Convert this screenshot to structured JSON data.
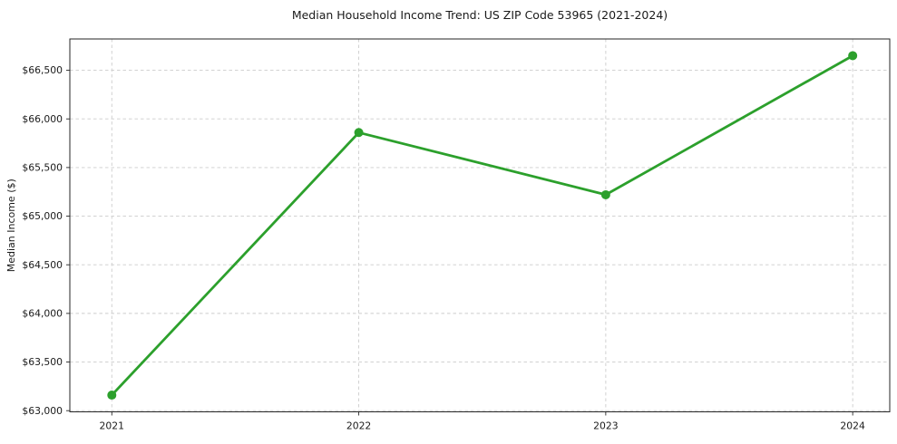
{
  "figure": {
    "background": "#ffffff"
  },
  "chart_data": {
    "type": "line",
    "title": "Median Household Income Trend: US ZIP Code 53965 (2021-2024)",
    "xlabel": "",
    "ylabel": "Median Income ($)",
    "x": [
      2021,
      2022,
      2023,
      2024
    ],
    "x_tick_labels": [
      "2021",
      "2022",
      "2023",
      "2024"
    ],
    "values": [
      63160,
      65860,
      65220,
      66650
    ],
    "y_ticks": [
      {
        "value": 63000,
        "label": "$63,000"
      },
      {
        "value": 63500,
        "label": "$63,500"
      },
      {
        "value": 64000,
        "label": "$64,000"
      },
      {
        "value": 64500,
        "label": "$64,500"
      },
      {
        "value": 65000,
        "label": "$65,000"
      },
      {
        "value": 65500,
        "label": "$65,500"
      },
      {
        "value": 66000,
        "label": "$66,000"
      },
      {
        "value": 66500,
        "label": "$66,500"
      }
    ],
    "xlim": [
      2020.83,
      2024.15
    ],
    "ylim": [
      62988,
      66822
    ],
    "grid": true,
    "grid_style": "dashed",
    "legend": "none",
    "style": {
      "line_color": "#2ca02c",
      "marker": "circle",
      "marker_radius": 5,
      "line_width": 2.8,
      "grid_color": "#cccccc",
      "grid_dash": "3.5 3",
      "spine_color": "#262626",
      "text_color": "#1a1a1a",
      "tick_font_size": 10.8,
      "ylabel_font_size": 11
    }
  }
}
